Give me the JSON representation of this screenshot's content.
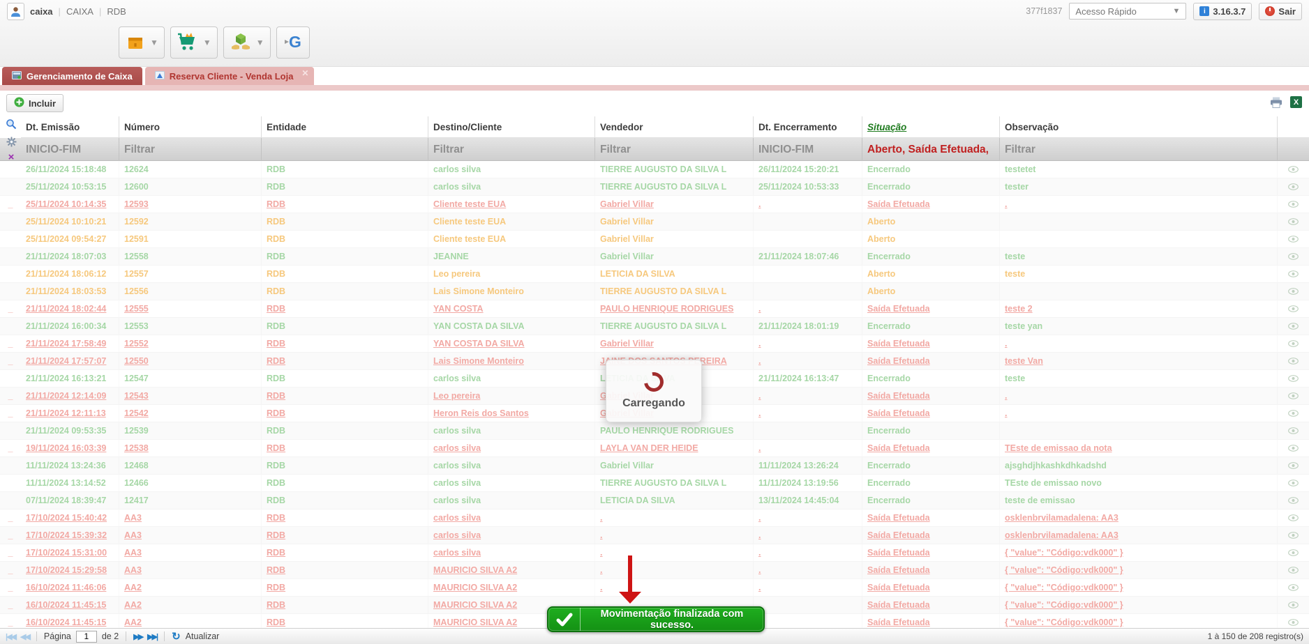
{
  "topbar": {
    "username": "caixa",
    "org": "CAIXA",
    "branch": "RDB",
    "session": "377f1837",
    "quick_access": "Acesso Rápido",
    "version": "3.16.3.7",
    "logout": "Sair",
    "icons": [
      "user-avatar-icon",
      "info-icon",
      "power-icon"
    ]
  },
  "toolbar": {
    "icons": [
      "package-icon",
      "cart-icon",
      "logistics-icon",
      "sync-icon"
    ]
  },
  "tabs": [
    {
      "label": "Gerenciamento de Caixa",
      "active": true,
      "icon": "window-icon"
    },
    {
      "label": "Reserva Cliente - Venda Loja",
      "active": false,
      "closable": true,
      "icon": "chart-icon"
    }
  ],
  "actions": {
    "add_label": "Incluir",
    "icons": [
      "plus-icon",
      "print-icon",
      "excel-icon",
      "search-icon",
      "gear-icon",
      "clear-filter-icon"
    ]
  },
  "grid": {
    "columns": [
      "Dt. Emissão",
      "Número",
      "Entidade",
      "Destino/Cliente",
      "Vendedor",
      "Dt. Encerramento",
      "Situação",
      "Observação"
    ],
    "sorted_column": "Situação",
    "filters": [
      "INICIO-FIM",
      "Filtrar",
      "",
      "Filtrar",
      "Filtrar",
      "INICIO-FIM",
      "Aberto, Saída Efetuada,",
      "Filtrar"
    ],
    "status_colors": {
      "encerrado": "#a6d7a6",
      "aberto": "#f6c87d",
      "saida_efetuada": "#f2a9a4"
    },
    "rows": [
      [
        "26/11/2024 15:18:48",
        "12624",
        "RDB",
        "carlos silva",
        "TIERRE AUGUSTO DA SILVA L",
        "26/11/2024 15:20:21",
        "Encerrado",
        "testetet",
        "enc"
      ],
      [
        "25/11/2024 10:53:15",
        "12600",
        "RDB",
        "carlos silva",
        "TIERRE AUGUSTO DA SILVA L",
        "25/11/2024 10:53:33",
        "Encerrado",
        "tester",
        "enc"
      ],
      [
        "25/11/2024 10:14:35",
        "12593",
        "RDB",
        "Cliente teste EUA",
        "Gabriel Villar",
        ".",
        "Saída Efetuada",
        ".",
        "sai"
      ],
      [
        "25/11/2024 10:10:21",
        "12592",
        "RDB",
        "Cliente teste EUA",
        "Gabriel Villar",
        "",
        "Aberto",
        "",
        "abe"
      ],
      [
        "25/11/2024 09:54:27",
        "12591",
        "RDB",
        "Cliente teste EUA",
        "Gabriel Villar",
        "",
        "Aberto",
        "",
        "abe"
      ],
      [
        "21/11/2024 18:07:03",
        "12558",
        "RDB",
        "JEANNE",
        "Gabriel Villar",
        "21/11/2024 18:07:46",
        "Encerrado",
        "teste",
        "enc"
      ],
      [
        "21/11/2024 18:06:12",
        "12557",
        "RDB",
        "Leo pereira",
        "LETICIA DA SILVA",
        "",
        "Aberto",
        "teste",
        "abe"
      ],
      [
        "21/11/2024 18:03:53",
        "12556",
        "RDB",
        "Lais Simone Monteiro",
        "TIERRE AUGUSTO DA SILVA L",
        "",
        "Aberto",
        "",
        "abe"
      ],
      [
        "21/11/2024 18:02:44",
        "12555",
        "RDB",
        "YAN COSTA",
        "PAULO HENRIQUE RODRIGUES",
        ".",
        "Saída Efetuada",
        "teste 2",
        "sai"
      ],
      [
        "21/11/2024 16:00:34",
        "12553",
        "RDB",
        "YAN COSTA DA SILVA",
        "TIERRE AUGUSTO DA SILVA L",
        "21/11/2024 18:01:19",
        "Encerrado",
        "teste yan",
        "enc"
      ],
      [
        "21/11/2024 17:58:49",
        "12552",
        "RDB",
        "YAN COSTA DA SILVA",
        "Gabriel Villar",
        ".",
        "Saída Efetuada",
        ".",
        "sai"
      ],
      [
        "21/11/2024 17:57:07",
        "12550",
        "RDB",
        "Lais Simone Monteiro",
        "JAINE DOS SANTOS PEREIRA",
        ".",
        "Saída Efetuada",
        "teste Van",
        "sai"
      ],
      [
        "21/11/2024 16:13:21",
        "12547",
        "RDB",
        "carlos silva",
        "LETICIA DA SILVA",
        "21/11/2024 16:13:47",
        "Encerrado",
        "teste",
        "enc"
      ],
      [
        "21/11/2024 12:14:09",
        "12543",
        "RDB",
        "Leo pereira",
        "Gabriel Villar",
        ".",
        "Saída Efetuada",
        ".",
        "sai"
      ],
      [
        "21/11/2024 12:11:13",
        "12542",
        "RDB",
        "Heron Reis dos Santos",
        "Gabriel Villar",
        ".",
        "Saída Efetuada",
        ".",
        "sai"
      ],
      [
        "21/11/2024 09:53:35",
        "12539",
        "RDB",
        "carlos silva",
        "PAULO HENRIQUE RODRIGUES",
        "",
        "Encerrado",
        "",
        "enc"
      ],
      [
        "19/11/2024 16:03:39",
        "12538",
        "RDB",
        "carlos silva",
        "LAYLA VAN DER HEIDE",
        ".",
        "Saída Efetuada",
        "TEste de emissao da nota",
        "sai"
      ],
      [
        "11/11/2024 13:24:36",
        "12468",
        "RDB",
        "carlos silva",
        "Gabriel Villar",
        "11/11/2024 13:26:24",
        "Encerrado",
        "ajsghdjhkashkdhkadshd",
        "enc"
      ],
      [
        "11/11/2024 13:14:52",
        "12466",
        "RDB",
        "carlos silva",
        "TIERRE AUGUSTO DA SILVA L",
        "11/11/2024 13:19:56",
        "Encerrado",
        "TEste de emissao novo",
        "enc"
      ],
      [
        "07/11/2024 18:39:47",
        "12417",
        "RDB",
        "carlos silva",
        "LETICIA DA SILVA",
        "13/11/2024 14:45:04",
        "Encerrado",
        "teste de emissao",
        "enc"
      ],
      [
        "17/10/2024 15:40:42",
        "AA3",
        "RDB",
        "carlos silva",
        ".",
        ".",
        "Saída Efetuada",
        "osklenbrvilamadalena: AA3",
        "sai"
      ],
      [
        "17/10/2024 15:39:32",
        "AA3",
        "RDB",
        "carlos silva",
        ".",
        ".",
        "Saída Efetuada",
        "osklenbrvilamadalena: AA3",
        "sai"
      ],
      [
        "17/10/2024 15:31:00",
        "AA3",
        "RDB",
        "carlos silva",
        ".",
        ".",
        "Saída Efetuada",
        "{ \"value\": \"Código:vdk000\" }",
        "sai"
      ],
      [
        "17/10/2024 15:29:58",
        "AA3",
        "RDB",
        "MAURICIO SILVA A2",
        ".",
        ".",
        "Saída Efetuada",
        "{ \"value\": \"Código:vdk000\" }",
        "sai"
      ],
      [
        "16/10/2024 11:46:06",
        "AA2",
        "RDB",
        "MAURICIO SILVA A2",
        ".",
        ".",
        "Saída Efetuada",
        "{ \"value\": \"Código:vdk000\" }",
        "sai"
      ],
      [
        "16/10/2024 11:45:15",
        "AA2",
        "RDB",
        "MAURICIO SILVA A2",
        ".",
        ".",
        "Saída Efetuada",
        "{ \"value\": \"Código:vdk000\" }",
        "sai"
      ],
      [
        "16/10/2024 11:45:15",
        "AA2",
        "RDB",
        "MAURICIO SILVA A2",
        ".",
        ".",
        "Saída Efetuada",
        "{ \"value\": \"Código:vdk000\" }",
        "sai"
      ]
    ],
    "row_action_icon": "eye-icon"
  },
  "loading": {
    "label": "Carregando",
    "spinner_color": "#a02c2c"
  },
  "toast": {
    "message": "Movimentação finalizada com sucesso.",
    "icon": "check-icon",
    "color": "#149114"
  },
  "pagination": {
    "page_label": "Página",
    "page_value": "1",
    "total_label": "de 2",
    "refresh_label": "Atualizar",
    "records_summary": "1 à 150 de 208 registro(s)",
    "icons": [
      "first-page-icon",
      "prev-page-icon",
      "next-page-icon",
      "last-page-icon",
      "refresh-icon"
    ]
  },
  "colors": {
    "active_tab": "#a84a48",
    "tab_strip": "#ecc9c9",
    "situacao_header": "#1d7a1d",
    "filter_highlight": "#c02020",
    "annotation_arrow": "#ce1414"
  }
}
